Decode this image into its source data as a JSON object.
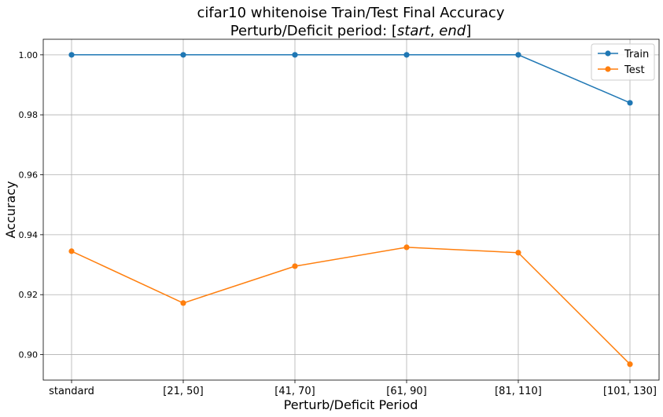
{
  "chart_data": {
    "type": "line",
    "title": "cifar10 whitenoise Train/Test Final Accuracy",
    "subtitle_prefix": "Perturb/Deficit period: [",
    "subtitle_start": "start",
    "subtitle_sep": ", ",
    "subtitle_end": "end",
    "subtitle_suffix": "]",
    "xlabel": "Perturb/Deficit Period",
    "ylabel": "Accuracy",
    "categories": [
      "standard",
      "[21, 50]",
      "[41, 70]",
      "[61, 90]",
      "[81, 110]",
      "[101, 130]"
    ],
    "ylim": [
      0.8915,
      1.0052
    ],
    "yticks": [
      0.9,
      0.92,
      0.94,
      0.96,
      0.98,
      1.0
    ],
    "ytick_labels": [
      "0.90",
      "0.92",
      "0.94",
      "0.96",
      "0.98",
      "1.00"
    ],
    "grid": true,
    "legend_position": "top-right",
    "series": [
      {
        "name": "Train",
        "color": "#1f77b4",
        "values": [
          1.0,
          1.0,
          1.0,
          1.0,
          1.0,
          0.984
        ]
      },
      {
        "name": "Test",
        "color": "#ff7f0e",
        "values": [
          0.9345,
          0.9172,
          0.9295,
          0.9358,
          0.934,
          0.8968
        ]
      }
    ]
  }
}
